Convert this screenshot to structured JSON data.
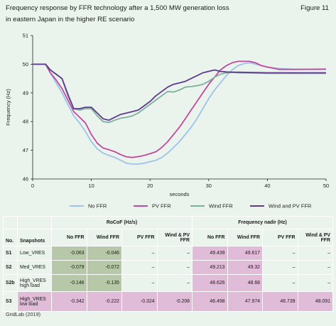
{
  "header": {
    "title_line1": "Frequency response by FFR technology after a 1,500 MW generation loss",
    "title_line2": "in eastern Japan in the higher RE scenario",
    "figure_label": "Figure 11"
  },
  "chart_data": {
    "type": "line",
    "title": "",
    "xlabel": "seconds",
    "ylabel": "Frequency (Hz)",
    "xlim": [
      0,
      50
    ],
    "ylim": [
      46,
      51
    ],
    "xticks": [
      0,
      10,
      20,
      30,
      40,
      50
    ],
    "yticks": [
      46,
      47,
      48,
      49,
      50,
      51
    ],
    "grid": false,
    "legend_position": "bottom",
    "series": [
      {
        "name": "No FFR",
        "color": "#9cc3e8",
        "points": [
          [
            0,
            50
          ],
          [
            2.2,
            50
          ],
          [
            3,
            49.7
          ],
          [
            4,
            49.35
          ],
          [
            5,
            49.0
          ],
          [
            6,
            48.6
          ],
          [
            7,
            48.2
          ],
          [
            8,
            47.95
          ],
          [
            9,
            47.65
          ],
          [
            10,
            47.3
          ],
          [
            11,
            47.05
          ],
          [
            12,
            46.9
          ],
          [
            13,
            46.82
          ],
          [
            14,
            46.75
          ],
          [
            15,
            46.65
          ],
          [
            16,
            46.55
          ],
          [
            17,
            46.52
          ],
          [
            18,
            46.52
          ],
          [
            19,
            46.55
          ],
          [
            20,
            46.6
          ],
          [
            21,
            46.65
          ],
          [
            22,
            46.75
          ],
          [
            23,
            46.9
          ],
          [
            24,
            47.1
          ],
          [
            25,
            47.3
          ],
          [
            26,
            47.55
          ],
          [
            27,
            47.8
          ],
          [
            28,
            48.1
          ],
          [
            29,
            48.45
          ],
          [
            30,
            48.8
          ],
          [
            31,
            49.1
          ],
          [
            32,
            49.35
          ],
          [
            33,
            49.6
          ],
          [
            34,
            49.8
          ],
          [
            35,
            49.95
          ],
          [
            36,
            50.02
          ],
          [
            37,
            50.05
          ],
          [
            38,
            50.0
          ],
          [
            39,
            49.95
          ],
          [
            40,
            49.9
          ],
          [
            42,
            49.85
          ],
          [
            45,
            49.82
          ],
          [
            50,
            49.82
          ]
        ]
      },
      {
        "name": "PV FFR",
        "color": "#c04a9e",
        "points": [
          [
            0,
            50
          ],
          [
            2.2,
            50
          ],
          [
            3,
            49.7
          ],
          [
            4,
            49.45
          ],
          [
            5,
            49.15
          ],
          [
            6,
            48.75
          ],
          [
            7,
            48.35
          ],
          [
            8,
            48.15
          ],
          [
            9,
            47.95
          ],
          [
            10,
            47.55
          ],
          [
            11,
            47.25
          ],
          [
            12,
            47.08
          ],
          [
            13,
            47.02
          ],
          [
            14,
            46.95
          ],
          [
            15,
            46.85
          ],
          [
            16,
            46.77
          ],
          [
            17,
            46.75
          ],
          [
            18,
            46.78
          ],
          [
            19,
            46.82
          ],
          [
            20,
            46.88
          ],
          [
            21,
            46.95
          ],
          [
            22,
            47.1
          ],
          [
            23,
            47.3
          ],
          [
            24,
            47.55
          ],
          [
            25,
            47.8
          ],
          [
            26,
            48.1
          ],
          [
            27,
            48.4
          ],
          [
            28,
            48.7
          ],
          [
            29,
            49.0
          ],
          [
            30,
            49.3
          ],
          [
            31,
            49.55
          ],
          [
            32,
            49.8
          ],
          [
            33,
            49.95
          ],
          [
            34,
            50.05
          ],
          [
            35,
            50.1
          ],
          [
            36,
            50.1
          ],
          [
            37,
            50.1
          ],
          [
            38,
            50.05
          ],
          [
            39,
            49.95
          ],
          [
            40,
            49.9
          ],
          [
            42,
            49.82
          ],
          [
            45,
            49.82
          ],
          [
            50,
            49.83
          ]
        ]
      },
      {
        "name": "Wind FFR",
        "color": "#7faea0",
        "points": [
          [
            0,
            50
          ],
          [
            2.2,
            50
          ],
          [
            3,
            49.8
          ],
          [
            4,
            49.65
          ],
          [
            5,
            49.5
          ],
          [
            6,
            48.9
          ],
          [
            7,
            48.45
          ],
          [
            8,
            48.4
          ],
          [
            9,
            48.45
          ],
          [
            10,
            48.45
          ],
          [
            11,
            48.2
          ],
          [
            12,
            48.0
          ],
          [
            13,
            47.97
          ],
          [
            14,
            48.05
          ],
          [
            15,
            48.12
          ],
          [
            16,
            48.15
          ],
          [
            17,
            48.2
          ],
          [
            18,
            48.3
          ],
          [
            19,
            48.45
          ],
          [
            20,
            48.6
          ],
          [
            21,
            48.75
          ],
          [
            22,
            48.9
          ],
          [
            23,
            49.05
          ],
          [
            24,
            49.03
          ],
          [
            25,
            49.1
          ],
          [
            26,
            49.2
          ],
          [
            27,
            49.22
          ],
          [
            28,
            49.25
          ],
          [
            29,
            49.3
          ],
          [
            30,
            49.4
          ],
          [
            31,
            49.55
          ],
          [
            32,
            49.65
          ],
          [
            33,
            49.7
          ],
          [
            34,
            49.72
          ],
          [
            35,
            49.7
          ],
          [
            40,
            49.68
          ],
          [
            45,
            49.68
          ],
          [
            50,
            49.68
          ]
        ]
      },
      {
        "name": "Wind and PV FFR",
        "color": "#5d3a8f",
        "points": [
          [
            0,
            50
          ],
          [
            2.2,
            50
          ],
          [
            3,
            49.8
          ],
          [
            4,
            49.65
          ],
          [
            5,
            49.5
          ],
          [
            6,
            48.95
          ],
          [
            7,
            48.45
          ],
          [
            8,
            48.45
          ],
          [
            9,
            48.5
          ],
          [
            10,
            48.5
          ],
          [
            11,
            48.3
          ],
          [
            12,
            48.1
          ],
          [
            13,
            48.05
          ],
          [
            14,
            48.15
          ],
          [
            15,
            48.25
          ],
          [
            16,
            48.3
          ],
          [
            17,
            48.35
          ],
          [
            18,
            48.4
          ],
          [
            19,
            48.55
          ],
          [
            20,
            48.7
          ],
          [
            21,
            48.9
          ],
          [
            22,
            49.05
          ],
          [
            23,
            49.2
          ],
          [
            24,
            49.3
          ],
          [
            25,
            49.35
          ],
          [
            26,
            49.4
          ],
          [
            27,
            49.5
          ],
          [
            28,
            49.6
          ],
          [
            29,
            49.7
          ],
          [
            30,
            49.75
          ],
          [
            31,
            49.8
          ],
          [
            32,
            49.75
          ],
          [
            33,
            49.73
          ],
          [
            34,
            49.72
          ],
          [
            35,
            49.72
          ],
          [
            40,
            49.7
          ],
          [
            45,
            49.7
          ],
          [
            50,
            49.7
          ]
        ]
      }
    ]
  },
  "table": {
    "group_rocof": "RoCoF (Hz/s)",
    "group_nadir": "Frequency nadir (Hz)",
    "col_no": "No.",
    "col_snapshots": "Snapshots",
    "cols": [
      "No FFR",
      "Wind FFR",
      "PV FFR",
      "Wind & PV FFR",
      "No FFR",
      "Wind FFR",
      "PV FFR",
      "Wind & PV FFR"
    ],
    "rows": [
      {
        "id": "S1",
        "snap": "Low_VRES",
        "cells": [
          "-0.063",
          "-0.046",
          "–",
          "–",
          "49.439",
          "49.617",
          "–",
          "–"
        ],
        "shade": [
          "g",
          "g",
          "",
          "",
          "p",
          "p",
          "",
          ""
        ]
      },
      {
        "id": "S2",
        "snap": "Med_VRES",
        "cells": [
          "-0.079",
          "-0.072",
          "–",
          "–",
          "49.213",
          "49.32",
          "–",
          "–"
        ],
        "shade": [
          "g",
          "g",
          "",
          "",
          "p",
          "p",
          "",
          ""
        ]
      },
      {
        "id": "S2b",
        "snap": "High_VRES high load",
        "cells": [
          "-0.146",
          "-0.135",
          "–",
          "–",
          "48.626",
          "48.68",
          "–",
          "–"
        ],
        "shade": [
          "g",
          "g",
          "",
          "",
          "p",
          "p",
          "",
          ""
        ]
      },
      {
        "id": "S3",
        "snap": "High_VRES low load",
        "cells": [
          "-0.342",
          "-0.222",
          "-0.324",
          "-0.208",
          "46.498",
          "47.974",
          "46.739",
          "48.091"
        ],
        "shade": [
          "p",
          "p",
          "p",
          "p",
          "p",
          "p",
          "p",
          "p"
        ]
      }
    ]
  },
  "source": "GridLab (2019)"
}
